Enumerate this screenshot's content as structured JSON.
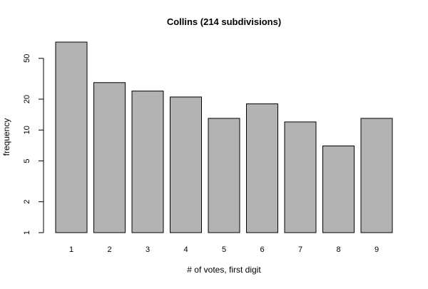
{
  "chart_data": {
    "type": "bar",
    "title": "Collins (214 subdivisions)",
    "xlabel": "# of votes, first digit",
    "ylabel": "frequency",
    "categories": [
      "1",
      "2",
      "3",
      "4",
      "5",
      "6",
      "7",
      "8",
      "9"
    ],
    "values": [
      72,
      29,
      24,
      21,
      13,
      18,
      12,
      7,
      13
    ],
    "yscale": "log",
    "ylim": [
      1,
      80
    ],
    "yticks": [
      1,
      2,
      5,
      10,
      20,
      50
    ],
    "grid": false,
    "legend": "none",
    "colors": {
      "bar_fill": "#b3b3b3",
      "bar_stroke": "#000000",
      "background": "#ffffff"
    }
  }
}
